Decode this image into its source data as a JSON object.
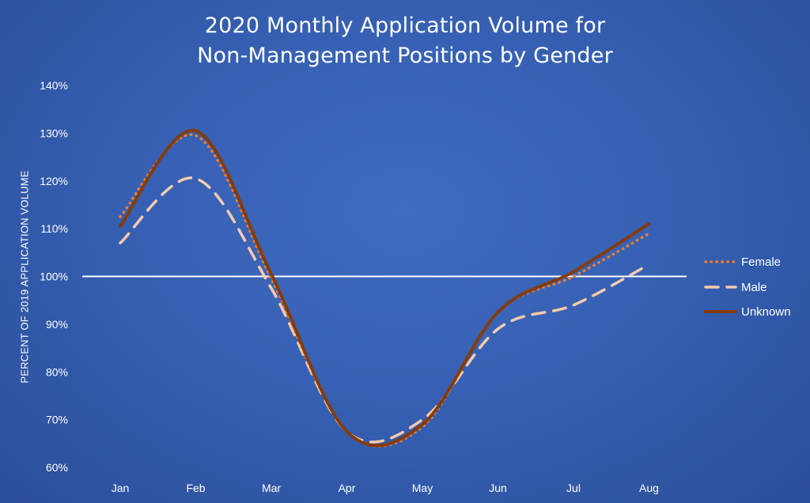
{
  "chart_data": {
    "type": "line",
    "title_line1": "2020 Monthly Application Volume for",
    "title_line2": "Non-Management Positions by Gender",
    "ylabel": "PERCENT OF 2019 APPLICATION VOLUME",
    "xlabel": "",
    "categories": [
      "Jan",
      "Feb",
      "Mar",
      "Apr",
      "May",
      "Jun",
      "Jul",
      "Aug"
    ],
    "ylim": [
      60,
      140
    ],
    "y_ticks": [
      60,
      70,
      80,
      90,
      100,
      110,
      120,
      130,
      140
    ],
    "y_tick_labels": [
      "60%",
      "70%",
      "80%",
      "90%",
      "100%",
      "110%",
      "120%",
      "130%",
      "140%"
    ],
    "reference_line": 100,
    "grid": false,
    "legend_position": "right",
    "series": [
      {
        "name": "Female",
        "values": [
          112.5,
          129.5,
          99.5,
          67.5,
          68.5,
          92.5,
          100,
          109
        ],
        "color": "#ED7D31",
        "style": "dotted"
      },
      {
        "name": "Male",
        "values": [
          107,
          120.5,
          97.5,
          67.5,
          70,
          89,
          94,
          102.5
        ],
        "color": "#F8CBAD",
        "style": "dashed"
      },
      {
        "name": "Unknown",
        "values": [
          110.5,
          130.5,
          100.5,
          67.5,
          69,
          92.5,
          101,
          111
        ],
        "color": "#843C0C",
        "style": "solid"
      }
    ]
  }
}
